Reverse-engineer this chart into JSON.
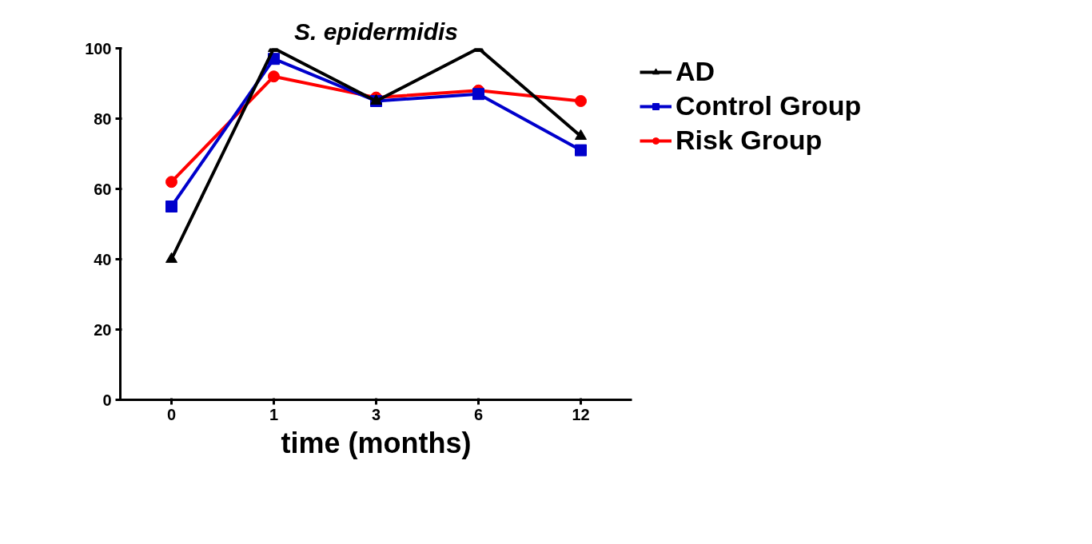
{
  "chart_data": {
    "type": "line",
    "title": "S. epidermidis",
    "xlabel": "time (months)",
    "categories": [
      "0",
      "1",
      "3",
      "6",
      "12"
    ],
    "ylim": [
      0,
      100
    ],
    "yticks": [
      0,
      20,
      40,
      60,
      80,
      100
    ],
    "grid": false,
    "legend": "top right",
    "line_style": "solid",
    "series": [
      {
        "name": "AD",
        "color": "#000000",
        "marker": "triangle",
        "values": [
          40,
          100,
          85,
          100,
          75
        ]
      },
      {
        "name": "Control Group",
        "color": "#0000cc",
        "marker": "square",
        "values": [
          55,
          97,
          85,
          87,
          71
        ]
      },
      {
        "name": "Risk Group",
        "color": "#ff0000",
        "marker": "circle",
        "values": [
          62,
          92,
          86,
          88,
          85
        ]
      }
    ]
  }
}
